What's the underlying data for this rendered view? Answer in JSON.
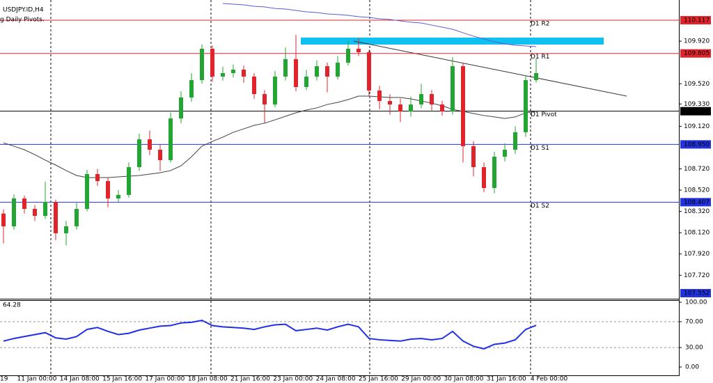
{
  "chart_data": [
    {
      "type": "candlestick",
      "title": "USDJPY.ID,H4",
      "subtitle": "g Daily Pivots.",
      "up_color": "#22a532",
      "down_color": "#e0242b",
      "open": [
        108.3,
        108.18,
        108.442,
        108.344,
        108.278,
        108.409,
        108.115,
        108.18,
        108.344,
        108.671,
        108.605,
        108.442,
        108.475,
        108.736,
        108.998,
        108.9,
        108.802,
        109.194,
        109.391,
        109.554,
        109.849,
        109.587,
        109.62,
        109.653,
        109.587,
        109.423,
        109.325,
        109.587,
        109.751,
        109.489,
        109.587,
        109.685,
        109.587,
        109.718,
        109.849,
        109.816,
        109.456,
        109.358,
        109.325,
        109.26,
        109.325,
        109.423,
        109.325,
        109.26,
        109.685,
        108.933,
        108.736,
        108.54,
        108.834,
        108.9,
        109.064,
        109.554
      ],
      "high": [
        108.34,
        108.48,
        108.47,
        108.38,
        108.6,
        108.43,
        108.23,
        108.4,
        108.71,
        108.72,
        108.64,
        108.52,
        108.78,
        109.05,
        109.08,
        108.95,
        109.25,
        109.45,
        109.62,
        109.89,
        109.88,
        109.68,
        109.7,
        109.69,
        109.62,
        109.46,
        109.64,
        109.86,
        109.98,
        109.65,
        109.74,
        109.72,
        109.78,
        109.92,
        109.95,
        109.84,
        109.5,
        109.42,
        109.38,
        109.4,
        109.52,
        109.46,
        109.36,
        109.77,
        109.72,
        108.98,
        108.78,
        108.88,
        108.96,
        109.12,
        109.6,
        109.76
      ],
      "low": [
        108.02,
        108.15,
        108.3,
        108.23,
        108.25,
        108.05,
        108.0,
        108.15,
        108.32,
        108.56,
        108.36,
        108.4,
        108.45,
        108.7,
        108.85,
        108.7,
        108.78,
        109.15,
        109.35,
        109.52,
        109.54,
        109.55,
        109.58,
        109.53,
        109.38,
        109.15,
        109.3,
        109.55,
        109.45,
        109.46,
        109.55,
        109.44,
        109.56,
        109.69,
        109.78,
        109.4,
        109.28,
        109.23,
        109.16,
        109.21,
        109.29,
        109.27,
        109.22,
        109.23,
        108.78,
        108.65,
        108.5,
        108.49,
        108.79,
        108.86,
        109.02,
        109.53
      ],
      "close": [
        108.18,
        108.442,
        108.344,
        108.278,
        108.409,
        108.115,
        108.18,
        108.344,
        108.671,
        108.605,
        108.442,
        108.475,
        108.736,
        108.998,
        108.9,
        108.802,
        109.194,
        109.391,
        109.554,
        109.849,
        109.587,
        109.62,
        109.653,
        109.587,
        109.423,
        109.325,
        109.587,
        109.751,
        109.489,
        109.587,
        109.685,
        109.587,
        109.718,
        109.849,
        109.816,
        109.456,
        109.358,
        109.325,
        109.26,
        109.325,
        109.423,
        109.325,
        109.26,
        109.685,
        108.933,
        108.736,
        108.54,
        108.834,
        108.9,
        109.064,
        109.554,
        109.62
      ],
      "moving_averages": [
        {
          "color": "#404040",
          "values": [
            108.965,
            108.933,
            108.9,
            108.854,
            108.802,
            108.756,
            108.704,
            108.658,
            108.638,
            108.638,
            108.638,
            108.645,
            108.651,
            108.658,
            108.671,
            108.684,
            108.704,
            108.749,
            108.834,
            108.933,
            108.978,
            109.018,
            109.064,
            109.096,
            109.129,
            109.149,
            109.181,
            109.214,
            109.247,
            109.273,
            109.293,
            109.325,
            109.345,
            109.371,
            109.404,
            109.404,
            109.397,
            109.391,
            109.391,
            109.378,
            109.358,
            109.338,
            109.312,
            109.28,
            109.26,
            109.24,
            109.221,
            109.208,
            109.194,
            109.208,
            109.247,
            109.26
          ]
        },
        {
          "color": "#5a5ad8",
          "values": [
            null,
            null,
            null,
            null,
            null,
            null,
            null,
            null,
            null,
            null,
            null,
            null,
            null,
            null,
            null,
            null,
            null,
            null,
            null,
            null,
            null,
            110.274,
            110.268,
            110.261,
            110.248,
            110.242,
            110.228,
            110.222,
            110.209,
            110.196,
            110.189,
            110.176,
            110.17,
            110.163,
            110.15,
            110.143,
            110.13,
            110.124,
            110.111,
            110.098,
            110.091,
            110.071,
            110.052,
            110.032,
            109.999,
            109.967,
            109.941,
            109.914,
            109.895,
            109.882,
            109.875,
            109.869
          ]
        }
      ],
      "pivots": [
        {
          "name": "D1 R2",
          "value": 110.117,
          "label": "110.117",
          "color": "#e0242b"
        },
        {
          "name": "D1 R1",
          "value": 109.805,
          "label": "109.805",
          "color": "#e0242b"
        },
        {
          "name": "D1 Pivot",
          "value": 109.262,
          "label": "109.262",
          "color": "#000000"
        },
        {
          "name": "D1 S1",
          "value": 108.95,
          "label": "108.950",
          "color": "#2233dd"
        },
        {
          "name": "D1 S2",
          "value": 108.407,
          "label": "108.407",
          "color": "#2233dd"
        }
      ],
      "bottom_price": 107.552,
      "ylim": [
        107.506,
        110.307
      ],
      "yticks": [
        {
          "value": 109.92,
          "label": "109.920"
        },
        {
          "value": 109.52,
          "label": "109.520"
        },
        {
          "value": 109.33,
          "label": "109.330"
        },
        {
          "value": 109.12,
          "label": "109.120"
        },
        {
          "value": 108.72,
          "label": "108.720"
        },
        {
          "value": 108.52,
          "label": "108.520"
        },
        {
          "value": 108.32,
          "label": "108.320"
        },
        {
          "value": 108.12,
          "label": "108.120"
        },
        {
          "value": 107.92,
          "label": "107.920"
        },
        {
          "value": 107.72,
          "label": "107.720"
        }
      ],
      "time_labels": [
        "19",
        "11 Jan 00:00",
        "14 Jan 08:00",
        "15 Jan 16:00",
        "17 Jan 00:00",
        "18 Jan 08:00",
        "21 Jan 16:00",
        "23 Jan 00:00",
        "24 Jan 08:00",
        "25 Jan 16:00",
        "29 Jan 00:00",
        "30 Jan 08:00",
        "31 Jan 16:00",
        "4 Feb 00:00"
      ]
    },
    {
      "type": "line",
      "color": "#1f2fe8",
      "values": [
        40,
        44,
        47,
        50,
        53,
        45,
        43,
        47,
        58,
        61,
        55,
        50,
        52,
        57,
        60,
        63,
        64,
        68,
        69,
        72,
        64,
        62,
        61,
        60,
        58,
        62,
        65,
        66,
        56,
        58,
        60,
        57,
        62,
        66,
        62,
        44,
        42,
        41,
        40,
        43,
        44,
        42,
        44,
        55,
        40,
        32,
        28,
        35,
        37,
        42,
        58,
        64.28
      ],
      "ylim": [
        0,
        100
      ],
      "yticks": [
        {
          "value": 100,
          "label": "100.00"
        },
        {
          "value": 70,
          "label": "70.00"
        },
        {
          "value": 30,
          "label": "30.00"
        },
        {
          "value": 0,
          "label": "0.00"
        }
      ],
      "grid_ticks": [
        70,
        30
      ]
    }
  ]
}
